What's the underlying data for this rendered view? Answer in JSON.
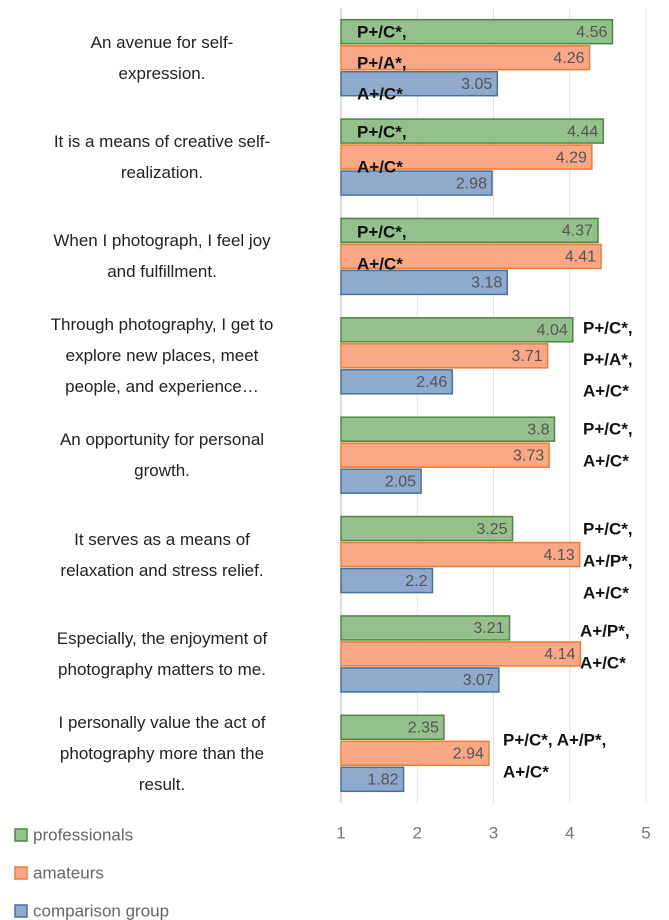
{
  "chart_data": {
    "type": "barh",
    "categories": [
      "An avenue for self-\nexpression.",
      "It is a means of creative self-\nrealization.",
      "When I photograph, I feel joy\nand fulfillment.",
      "Through photography, I get to\nexplore new places, meet\npeople, and experience…",
      "An opportunity for personal\ngrowth.",
      "It serves as a means of\nrelaxation and stress relief.",
      "Especially, the enjoyment of\nphotography matters to me.",
      "I personally value the act of\nphotography more than the\nresult."
    ],
    "series": [
      {
        "name": "professionals",
        "color": "#93c08b",
        "edge": "#4e8542",
        "values": [
          4.56,
          4.44,
          4.37,
          4.04,
          3.8,
          3.25,
          3.21,
          2.35
        ]
      },
      {
        "name": "amateurs",
        "color": "#f8a886",
        "edge": "#ed7d31",
        "values": [
          4.26,
          4.29,
          4.41,
          3.71,
          3.73,
          4.13,
          4.14,
          2.94
        ]
      },
      {
        "name": "comparison group",
        "color": "#8faacc",
        "edge": "#44729d",
        "values": [
          3.05,
          2.98,
          3.18,
          2.46,
          2.05,
          2.2,
          3.07,
          1.82
        ]
      }
    ],
    "annotations": [
      [
        "P+/C*,",
        "P+/A*,",
        "A+/C*"
      ],
      [
        "P+/C*,",
        "A+/C*"
      ],
      [
        "P+/C*,",
        "A+/C*"
      ],
      [
        "P+/C*,",
        "P+/A*,",
        "A+/C*"
      ],
      [
        "P+/C*,",
        "A+/C*"
      ],
      [
        "P+/C*,",
        "A+/P*,",
        "A+/C*"
      ],
      [
        "A+/P*,",
        "A+/C*"
      ],
      [
        "P+/C*, A+/P*,",
        "A+/C*"
      ]
    ],
    "xlim": [
      1,
      5
    ],
    "xticks": [
      1,
      2,
      3,
      4,
      5
    ],
    "grid": true,
    "legend": "bottom-left"
  }
}
